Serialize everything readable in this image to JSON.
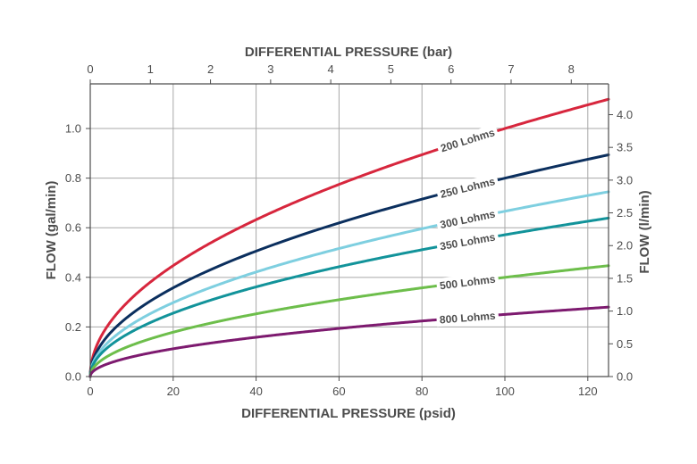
{
  "chart_data": {
    "type": "line",
    "x_bottom": {
      "label": "DIFFERENTIAL PRESSURE (psid)",
      "range": [
        0,
        125
      ],
      "ticks": [
        0,
        20,
        40,
        60,
        80,
        100,
        120
      ]
    },
    "x_top": {
      "label": "DIFFERENTIAL PRESSURE (bar)",
      "range": [
        0,
        8.62
      ],
      "ticks": [
        0,
        1,
        2,
        3,
        4,
        5,
        6,
        7,
        8
      ]
    },
    "y_left": {
      "label": "FLOW (gal/min)",
      "range": [
        0,
        1.18
      ],
      "ticks": [
        "0.0",
        "0.2",
        "0.4",
        "0.6",
        "0.8",
        "1.0"
      ]
    },
    "y_right": {
      "label": "FLOW (l/min)",
      "range": [
        0,
        4.47
      ],
      "ticks": [
        "0.0",
        "0.5",
        "1.0",
        "1.5",
        "2.0",
        "2.5",
        "3.0",
        "3.5",
        "4.0"
      ]
    },
    "grid": true,
    "series": [
      {
        "name": "200 Lohms",
        "color": "#d7263d",
        "x": [
          0,
          10,
          20,
          40,
          60,
          80,
          100,
          125
        ],
        "y": [
          0,
          0.316,
          0.447,
          0.632,
          0.775,
          0.894,
          1.0,
          1.118
        ]
      },
      {
        "name": "250 Lohms",
        "color": "#0b2f5e",
        "x": [
          0,
          10,
          20,
          40,
          60,
          80,
          100,
          125
        ],
        "y": [
          0,
          0.253,
          0.358,
          0.506,
          0.62,
          0.716,
          0.8,
          0.894
        ]
      },
      {
        "name": "300 Lohms",
        "color": "#7ecfe0",
        "x": [
          0,
          10,
          20,
          40,
          60,
          80,
          100,
          125
        ],
        "y": [
          0,
          0.211,
          0.298,
          0.422,
          0.516,
          0.596,
          0.667,
          0.745
        ]
      },
      {
        "name": "350 Lohms",
        "color": "#12939a",
        "x": [
          0,
          10,
          20,
          40,
          60,
          80,
          100,
          125
        ],
        "y": [
          0,
          0.181,
          0.256,
          0.361,
          0.443,
          0.511,
          0.571,
          0.639
        ]
      },
      {
        "name": "500 Lohms",
        "color": "#6dbe4b",
        "x": [
          0,
          10,
          20,
          40,
          60,
          80,
          100,
          125
        ],
        "y": [
          0,
          0.126,
          0.179,
          0.253,
          0.31,
          0.358,
          0.4,
          0.447
        ]
      },
      {
        "name": "800 Lohms",
        "color": "#7d1a6f",
        "x": [
          0,
          10,
          20,
          40,
          60,
          80,
          100,
          125
        ],
        "y": [
          0,
          0.079,
          0.112,
          0.158,
          0.194,
          0.224,
          0.25,
          0.28
        ]
      }
    ]
  }
}
